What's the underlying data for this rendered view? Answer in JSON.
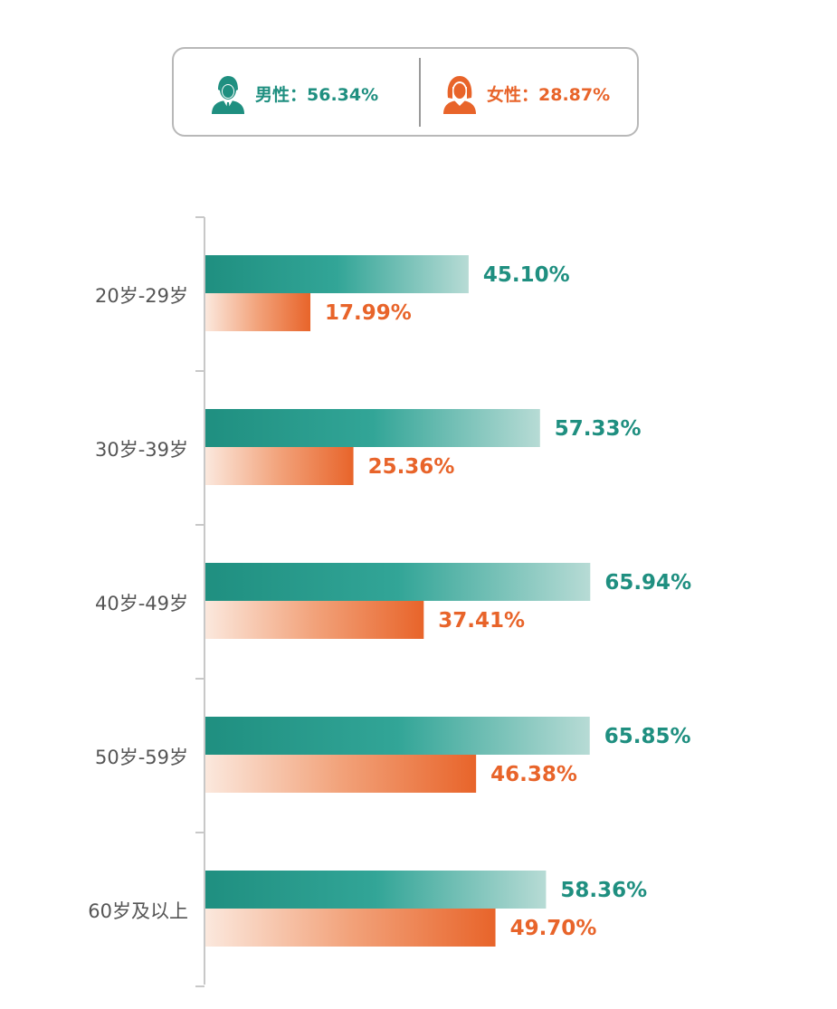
{
  "legend": {
    "male": {
      "label": "男性：56.34%",
      "icon": "male-avatar-icon",
      "color": "#1f8f80"
    },
    "female": {
      "label": "女性：28.87%",
      "icon": "female-avatar-icon",
      "color": "#e8642a"
    }
  },
  "chart_data": {
    "type": "bar",
    "orientation": "horizontal",
    "categories": [
      "20岁-29岁",
      "30岁-39岁",
      "40岁-49岁",
      "50岁-59岁",
      "60岁及以上"
    ],
    "series": [
      {
        "key": "male",
        "values": [
          45.1,
          57.33,
          65.94,
          65.85,
          58.36
        ],
        "labels": [
          "45.10%",
          "57.33%",
          "65.94%",
          "65.85%",
          "58.36%"
        ],
        "color": "#1f8f80"
      },
      {
        "key": "female",
        "values": [
          17.99,
          25.36,
          37.41,
          46.38,
          49.7
        ],
        "labels": [
          "17.99%",
          "25.36%",
          "37.41%",
          "46.38%",
          "49.70%"
        ],
        "color": "#e8642a"
      }
    ],
    "xlim": [
      0,
      100
    ],
    "grid": false,
    "legend_position": "top"
  }
}
